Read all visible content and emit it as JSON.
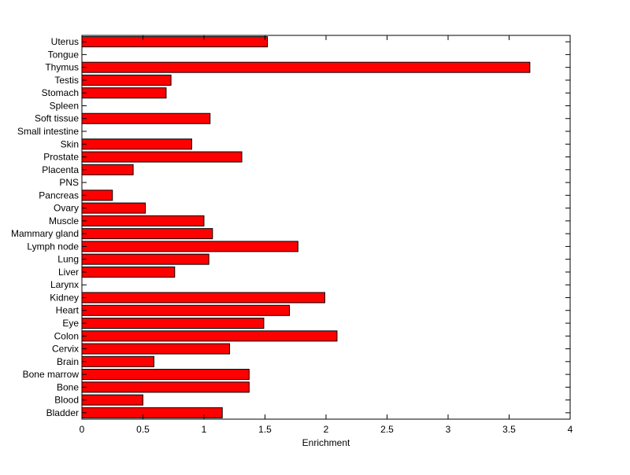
{
  "chart_data": {
    "type": "bar",
    "orientation": "horizontal",
    "categories": [
      "Bladder",
      "Blood",
      "Bone",
      "Bone marrow",
      "Brain",
      "Cervix",
      "Colon",
      "Eye",
      "Heart",
      "Kidney",
      "Larynx",
      "Liver",
      "Lung",
      "Lymph node",
      "Mammary gland",
      "Muscle",
      "Ovary",
      "Pancreas",
      "PNS",
      "Placenta",
      "Prostate",
      "Skin",
      "Small intestine",
      "Soft tissue",
      "Spleen",
      "Stomach",
      "Testis",
      "Thymus",
      "Tongue",
      "Uterus"
    ],
    "values": [
      1.15,
      0.5,
      1.37,
      1.37,
      0.59,
      1.21,
      2.09,
      1.49,
      1.7,
      1.99,
      0,
      0.76,
      1.04,
      1.77,
      1.07,
      1.0,
      0.52,
      0.25,
      0,
      0.42,
      1.31,
      0.9,
      0,
      1.05,
      0,
      0.69,
      0.73,
      3.67,
      0,
      1.52
    ],
    "xlabel": "Enrichment",
    "ylabel": "",
    "title": "",
    "xlim": [
      0,
      4
    ],
    "xticks": [
      "0",
      "0.5",
      "1",
      "1.5",
      "2",
      "2.5",
      "3",
      "3.5",
      "4"
    ],
    "bar_color": "#ff0000",
    "edge_color": "#000000",
    "grid": false
  }
}
